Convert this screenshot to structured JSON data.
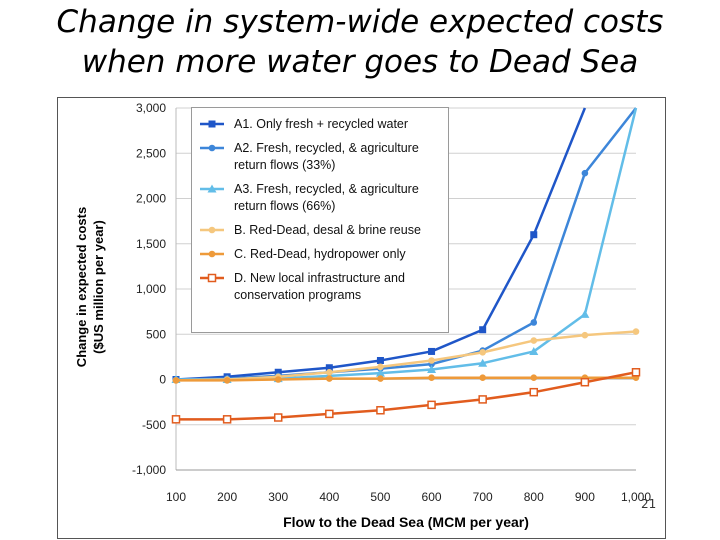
{
  "slide": {
    "title_line1": "Change in system-wide expected costs",
    "title_line2": "when more water goes to Dead Sea",
    "page_number": "21"
  },
  "chart_data": {
    "type": "line",
    "title": "",
    "xlabel": "Flow to the Dead Sea (MCM per year)",
    "ylabel_line1": "Change in expected costs",
    "ylabel_line2": "($US million per year)",
    "x": [
      100,
      200,
      300,
      400,
      500,
      600,
      700,
      800,
      900,
      1000
    ],
    "x_tick_labels": [
      "100",
      "200",
      "300",
      "400",
      "500",
      "600",
      "700",
      "800",
      "900",
      "1,000"
    ],
    "xlim": [
      100,
      1000
    ],
    "y_ticks": [
      -1000,
      -500,
      0,
      500,
      1000,
      1500,
      2000,
      2500,
      3000
    ],
    "y_tick_labels": [
      "-1,000",
      "-500",
      "0",
      "500",
      "1,000",
      "1,500",
      "2,000",
      "2,500",
      "3,000"
    ],
    "ylim": [
      -1000,
      3000
    ],
    "grid": "horizontal",
    "legend_position": "top-left",
    "series": [
      {
        "name": "A1. Only fresh + recycled water",
        "legend_lines": [
          "A1. Only fresh + recycled water"
        ],
        "color": "#1f56c8",
        "marker": "square",
        "values": [
          0,
          30,
          80,
          130,
          210,
          310,
          550,
          1600,
          3000,
          null
        ],
        "marker_until": 8
      },
      {
        "name": "A2. Fresh, recycled, & agriculture return flows (33%)",
        "legend_lines": [
          "A2. Fresh, recycled, & agriculture",
          "return flows (33%)"
        ],
        "color": "#3d86d9",
        "marker": "circle",
        "values": [
          0,
          10,
          40,
          80,
          120,
          170,
          320,
          630,
          2280,
          3000
        ],
        "marker_until": 9
      },
      {
        "name": "A3. Fresh, recycled, & agriculture return flows (66%)",
        "legend_lines": [
          "A3. Fresh, recycled, & agriculture",
          "return flows (66%)"
        ],
        "color": "#62bde8",
        "marker": "triangle",
        "values": [
          0,
          0,
          10,
          40,
          70,
          110,
          180,
          310,
          720,
          3000
        ],
        "marker_until": 9
      },
      {
        "name": "B. Red-Dead, desal & brine reuse",
        "legend_lines": [
          "B. Red-Dead, desal & brine reuse"
        ],
        "color": "#f5c77e",
        "marker": "circle",
        "values": [
          -10,
          0,
          30,
          80,
          140,
          210,
          300,
          430,
          490,
          530
        ],
        "marker_until": 10
      },
      {
        "name": "C. Red-Dead, hydropower only",
        "legend_lines": [
          "C. Red-Dead, hydropower only"
        ],
        "color": "#ee9a3a",
        "marker": "circle",
        "values": [
          -10,
          -10,
          0,
          10,
          10,
          20,
          20,
          20,
          20,
          20
        ],
        "marker_until": 10
      },
      {
        "name": "D. New local infrastructure and conservation programs",
        "legend_lines": [
          "D. New local infrastructure and",
          "conservation programs"
        ],
        "color": "#e15c1e",
        "marker": "square-open",
        "values": [
          -440,
          -440,
          -420,
          -380,
          -340,
          -280,
          -220,
          -140,
          -30,
          80
        ],
        "marker_until": 10
      }
    ]
  }
}
